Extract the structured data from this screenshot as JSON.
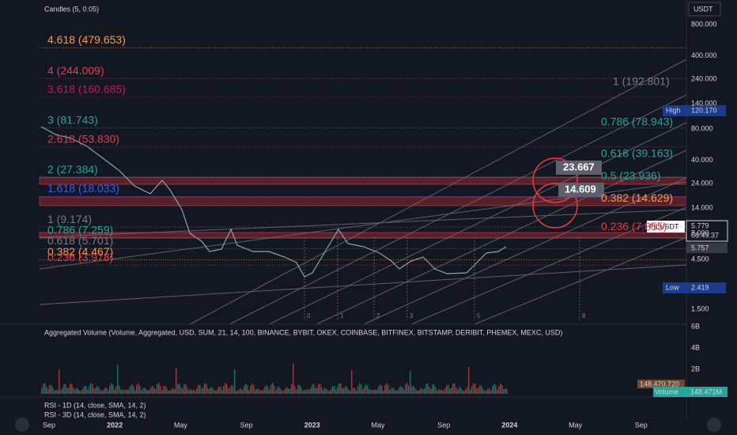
{
  "header": {
    "indicator": "Candles (5, 0.05)",
    "currency": "USDT"
  },
  "price_axis": {
    "ticks": [
      "800.000",
      "400.000",
      "240.000",
      "140.000",
      "80.000",
      "40.000",
      "24.000",
      "14.000",
      "8.000",
      "4.500",
      "1.500"
    ]
  },
  "badges": {
    "high_label": "High",
    "high_value": "120.170",
    "low_label": "Low",
    "low_value": "2.419",
    "symbol": "FILUSDT",
    "last_price": "5.779",
    "countdown": "08:49:37",
    "prev_price": "5.757"
  },
  "fib_left": [
    {
      "label": "4.618 (479.653)",
      "color": "#f59c4c"
    },
    {
      "label": "4 (244.009)",
      "color": "#f23645"
    },
    {
      "label": "3.618 (160.685)",
      "color": "#c2185b"
    },
    {
      "label": "3 (81.743)",
      "color": "#26a69a"
    },
    {
      "label": "2.618 (53.830)",
      "color": "#f23645"
    },
    {
      "label": "2 (27.384)",
      "color": "#26a69a"
    },
    {
      "label": "1.618 (18.033)",
      "color": "#2962ff"
    },
    {
      "label": "1 (9.174)",
      "color": "#787b86"
    },
    {
      "label": "0.786 (7.259)",
      "color": "#26a69a"
    },
    {
      "label": "0.618 (5.701)",
      "color": "#787b86"
    },
    {
      "label": "0.382 (4.467)",
      "color": "#f59c4c"
    },
    {
      "label": "0.236 (3.978)",
      "color": "#f23645"
    }
  ],
  "fib_right": [
    {
      "label": "1 (192.801)",
      "color": "#787b86"
    },
    {
      "label": "0.786 (78.943)",
      "color": "#26a69a"
    },
    {
      "label": "0.618 (39.163)",
      "color": "#26a69a"
    },
    {
      "label": "0.5 (23.936)",
      "color": "#26a69a"
    },
    {
      "label": "0.382 (14.629)",
      "color": "#f59c4c"
    },
    {
      "label": "0.236 (7.855)",
      "color": "#f23645"
    }
  ],
  "callouts": [
    "23.667",
    "14.609"
  ],
  "time_zones": [
    "0",
    "1",
    "2",
    "3",
    "5",
    "8"
  ],
  "volume_pane": {
    "title": "Aggregated Volume (Volume, Aggregated, USD, SUM, 21, 14, 100, BINANCE, BYBIT, OKEX, COINBASE, BITFINEX, BITSTAMP, DERIBIT, PHEMEX, MEXC, USD)",
    "ticks": [
      "6B",
      "4B",
      "2B"
    ],
    "last_label": "148.470.720",
    "badge_label": "Volume",
    "badge_value": "148.471M"
  },
  "rsi_pane": {
    "line1": "RSI - 1D (14, close, SMA, 14, 2)",
    "line2": "RSI - 3D (14, close, SMA, 14, 2)"
  },
  "time_axis": [
    "Sep",
    "2022",
    "May",
    "Sep",
    "2023",
    "May",
    "Sep",
    "2024",
    "May",
    "Sep"
  ]
}
